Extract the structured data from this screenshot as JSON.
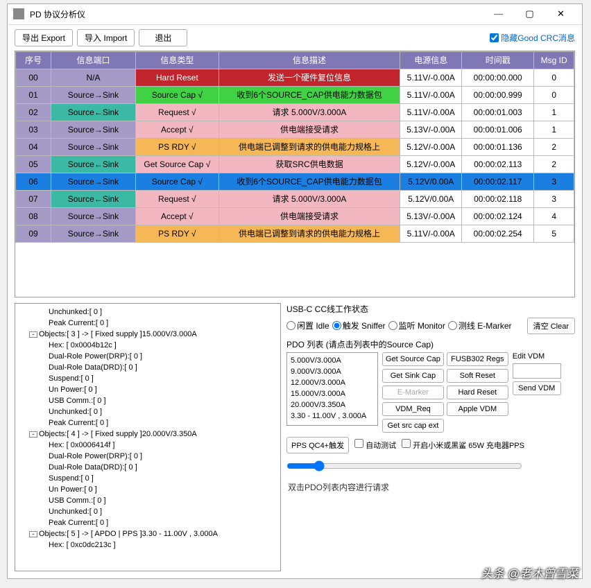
{
  "window": {
    "title": "PD 协议分析仪"
  },
  "toolbar": {
    "export": "导出 Export",
    "import": "导入 Import",
    "exit": "退出"
  },
  "hide_crc": {
    "label": "隐藏Good CRC消息",
    "checked": true
  },
  "table": {
    "headers": [
      "序号",
      "信息端口",
      "信息类型",
      "信息描述",
      "电源信息",
      "时间戳",
      "Msg ID"
    ],
    "col_widths": [
      "46px",
      "110px",
      "108px",
      "236px",
      "80px",
      "94px",
      "52px"
    ],
    "rows": [
      {
        "cells": [
          "00",
          "N/A",
          "Hard Reset",
          "发送一个硬件复位信息",
          "5.11V/-0.00A",
          "00:00:00.000",
          "0"
        ],
        "colors": [
          "#a49ac5",
          "#a49ac5",
          "#c1242a",
          "#c1242a",
          "",
          "",
          ""
        ]
      },
      {
        "cells": [
          "01",
          "Source→Sink",
          "Source Cap √",
          "收到6个SOURCE_CAP供电能力数据包",
          "5.11V/-0.00A",
          "00:00:00.999",
          "0"
        ],
        "colors": [
          "#a49ac5",
          "#a49ac5",
          "#41d145",
          "#41d145",
          "",
          "",
          ""
        ]
      },
      {
        "cells": [
          "02",
          "Source←Sink",
          "Request √",
          "请求 5.000V/3.000A",
          "5.11V/-0.00A",
          "00:00:01.003",
          "1"
        ],
        "colors": [
          "#a49ac5",
          "#3cb9a4",
          "#f3b7c2",
          "#f3b7c2",
          "",
          "",
          ""
        ]
      },
      {
        "cells": [
          "03",
          "Source→Sink",
          "Accept √",
          "供电端接受请求",
          "5.13V/-0.00A",
          "00:00:01.006",
          "1"
        ],
        "colors": [
          "#a49ac5",
          "#a49ac5",
          "#f3b7c2",
          "#f3b7c2",
          "",
          "",
          ""
        ]
      },
      {
        "cells": [
          "04",
          "Source→Sink",
          "PS RDY √",
          "供电端已调整到请求的供电能力规格上",
          "5.12V/-0.00A",
          "00:00:01.136",
          "2"
        ],
        "colors": [
          "#a49ac5",
          "#a49ac5",
          "#f6b756",
          "#f6b756",
          "",
          "",
          ""
        ]
      },
      {
        "cells": [
          "05",
          "Source←Sink",
          "Get Source Cap √",
          "获取SRC供电数据",
          "5.12V/-0.00A",
          "00:00:02.113",
          "2"
        ],
        "colors": [
          "#a49ac5",
          "#3cb9a4",
          "#f3b7c2",
          "#f3b7c2",
          "",
          "",
          ""
        ]
      },
      {
        "cells": [
          "06",
          "Source→Sink",
          "Source Cap √",
          "收到6个SOURCE_CAP供电能力数据包",
          "5.12V/0.00A",
          "00:00:02.117",
          "3"
        ],
        "colors": [
          "#1a7fe0",
          "#1a7fe0",
          "#1a7fe0",
          "#1a7fe0",
          "#1a7fe0",
          "#1a7fe0",
          "#1a7fe0"
        ],
        "selected": true
      },
      {
        "cells": [
          "07",
          "Source←Sink",
          "Request √",
          "请求 5.000V/3.000A",
          "5.12V/0.00A",
          "00:00:02.118",
          "3"
        ],
        "colors": [
          "#a49ac5",
          "#3cb9a4",
          "#f3b7c2",
          "#f3b7c2",
          "",
          "",
          ""
        ]
      },
      {
        "cells": [
          "08",
          "Source→Sink",
          "Accept √",
          "供电端接受请求",
          "5.13V/-0.00A",
          "00:00:02.124",
          "4"
        ],
        "colors": [
          "#a49ac5",
          "#a49ac5",
          "#f3b7c2",
          "#f3b7c2",
          "",
          "",
          ""
        ]
      },
      {
        "cells": [
          "09",
          "Source→Sink",
          "PS RDY √",
          "供电端已调整到请求的供电能力规格上",
          "5.11V/-0.00A",
          "00:00:02.254",
          "5"
        ],
        "colors": [
          "#a49ac5",
          "#a49ac5",
          "#f6b756",
          "#f6b756",
          "",
          "",
          ""
        ]
      }
    ]
  },
  "tree": [
    {
      "indent": 3,
      "text": "Unchunked:[ 0 ]"
    },
    {
      "indent": 3,
      "text": "Peak Current:[ 0 ]"
    },
    {
      "indent": 1,
      "exp": "-",
      "text": "Objects:[ 3 ] -> [ Fixed supply ]15.000V/3.000A"
    },
    {
      "indent": 3,
      "text": "Hex: [ 0x0004b12c ]"
    },
    {
      "indent": 3,
      "text": "Dual-Role Power(DRP):[ 0 ]"
    },
    {
      "indent": 3,
      "text": "Dual-Role Data(DRD):[ 0 ]"
    },
    {
      "indent": 3,
      "text": "Suspend:[ 0 ]"
    },
    {
      "indent": 3,
      "text": "Un Power:[ 0 ]"
    },
    {
      "indent": 3,
      "text": "USB Comm.:[ 0 ]"
    },
    {
      "indent": 3,
      "text": "Unchunked:[ 0 ]"
    },
    {
      "indent": 3,
      "text": "Peak Current:[ 0 ]"
    },
    {
      "indent": 1,
      "exp": "-",
      "text": "Objects:[ 4 ] -> [ Fixed supply ]20.000V/3.350A"
    },
    {
      "indent": 3,
      "text": "Hex: [ 0x0006414f ]"
    },
    {
      "indent": 3,
      "text": "Dual-Role Power(DRP):[ 0 ]"
    },
    {
      "indent": 3,
      "text": "Dual-Role Data(DRD):[ 0 ]"
    },
    {
      "indent": 3,
      "text": "Suspend:[ 0 ]"
    },
    {
      "indent": 3,
      "text": "Un Power:[ 0 ]"
    },
    {
      "indent": 3,
      "text": "USB Comm.:[ 0 ]"
    },
    {
      "indent": 3,
      "text": "Unchunked:[ 0 ]"
    },
    {
      "indent": 3,
      "text": "Peak Current:[ 0 ]"
    },
    {
      "indent": 1,
      "exp": "-",
      "text": "Objects:[ 5 ] -> [ APDO | PPS ]3.30 - 11.00V , 3.000A"
    },
    {
      "indent": 3,
      "text": "Hex: [ 0xc0dc213c ]"
    }
  ],
  "cc_group": {
    "label": "USB-C CC线工作状态",
    "options": [
      "闲置 Idle",
      "触发 Sniffer",
      "监听 Monitor",
      "测线 E-Marker"
    ],
    "selected": 1
  },
  "clear_btn": "清空 Clear",
  "pdo": {
    "label": "PDO 列表 (请点击列表中的Source Cap)",
    "list": [
      "5.000V/3.000A",
      "9.000V/3.000A",
      "12.000V/3.000A",
      "15.000V/3.000A",
      "20.000V/3.350A",
      "3.30 - 11.00V , 3.000A"
    ]
  },
  "pdo_buttons": [
    {
      "label": "Get Source Cap",
      "disabled": false
    },
    {
      "label": "FUSB302 Regs",
      "disabled": false
    },
    {
      "label": "Get Sink Cap",
      "disabled": false
    },
    {
      "label": "Soft Reset",
      "disabled": false
    },
    {
      "label": "E-Marker",
      "disabled": true
    },
    {
      "label": "Hard Reset",
      "disabled": false
    },
    {
      "label": "VDM_Req",
      "disabled": false
    },
    {
      "label": "Apple VDM",
      "disabled": false
    },
    {
      "label": "Get src cap ext",
      "disabled": false
    }
  ],
  "edit_vdm": {
    "label": "Edit VDM",
    "send": "Send VDM"
  },
  "pps": {
    "trigger": "PPS QC4+触发",
    "auto": "自动测试",
    "xiaomi": "开启小米或黑鲨 65W 充电器PPS"
  },
  "hint": "双击PDO列表内容进行请求",
  "watermark": "头条 @老木曾雪菜"
}
